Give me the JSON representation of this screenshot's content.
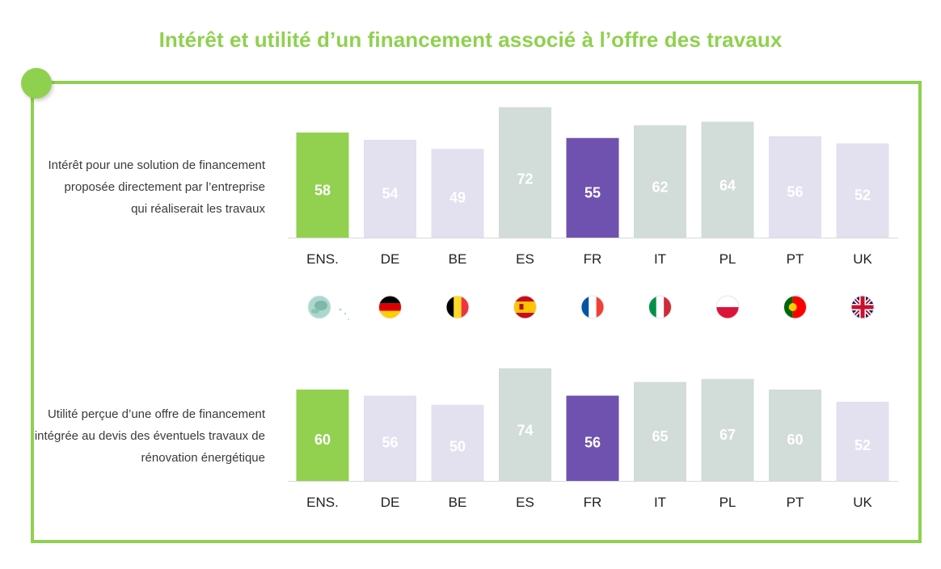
{
  "title": "Intérêt et utilité d’un financement associé à l’offre des travaux",
  "colors": {
    "accent": "#8fd14f",
    "highlight": "#6f52b0",
    "lavender": "#e3e0f0",
    "sage": "#d2dcd8",
    "baseline": "#d9d9d9"
  },
  "row_labels": {
    "top": [
      "Intérêt pour une solution de financement",
      "proposée directement par l’entreprise",
      "qui réaliserait les travaux"
    ],
    "bottom": [
      "Utilité perçue d’une offre de financement",
      "intégrée au devis des éventuels travaux de",
      "rénovation énergétique"
    ]
  },
  "flags": [
    {
      "country": "ENS.",
      "icon": "europe-globe-icon"
    },
    {
      "country": "DE",
      "icon": "germany-flag-icon"
    },
    {
      "country": "BE",
      "icon": "belgium-flag-icon"
    },
    {
      "country": "ES",
      "icon": "spain-flag-icon"
    },
    {
      "country": "FR",
      "icon": "france-flag-icon"
    },
    {
      "country": "IT",
      "icon": "italy-flag-icon"
    },
    {
      "country": "PL",
      "icon": "poland-flag-icon"
    },
    {
      "country": "PT",
      "icon": "portugal-flag-icon"
    },
    {
      "country": "UK",
      "icon": "uk-flag-icon"
    }
  ],
  "chart_data": [
    {
      "type": "bar",
      "title": "Intérêt pour une solution de financement proposée directement par l’entreprise qui réaliserait les travaux",
      "categories": [
        "ENS.",
        "DE",
        "BE",
        "ES",
        "FR",
        "IT",
        "PL",
        "PT",
        "UK"
      ],
      "values": [
        58,
        54,
        49,
        72,
        55,
        62,
        64,
        56,
        52
      ],
      "bar_colors": [
        "#92d050",
        "#e3e0f0",
        "#e3e0f0",
        "#d2dcd8",
        "#6f52b0",
        "#d2dcd8",
        "#d2dcd8",
        "#e3e0f0",
        "#e3e0f0"
      ],
      "ylim": [
        0,
        72
      ]
    },
    {
      "type": "bar",
      "title": "Utilité perçue d’une offre de financement intégrée au devis des éventuels travaux de rénovation énergétique",
      "categories": [
        "ENS.",
        "DE",
        "BE",
        "ES",
        "FR",
        "IT",
        "PL",
        "PT",
        "UK"
      ],
      "values": [
        60,
        56,
        50,
        74,
        56,
        65,
        67,
        60,
        52
      ],
      "bar_colors": [
        "#92d050",
        "#e3e0f0",
        "#e3e0f0",
        "#d2dcd8",
        "#6f52b0",
        "#d2dcd8",
        "#d2dcd8",
        "#d2dcd8",
        "#e3e0f0"
      ],
      "ylim": [
        0,
        74
      ]
    }
  ]
}
